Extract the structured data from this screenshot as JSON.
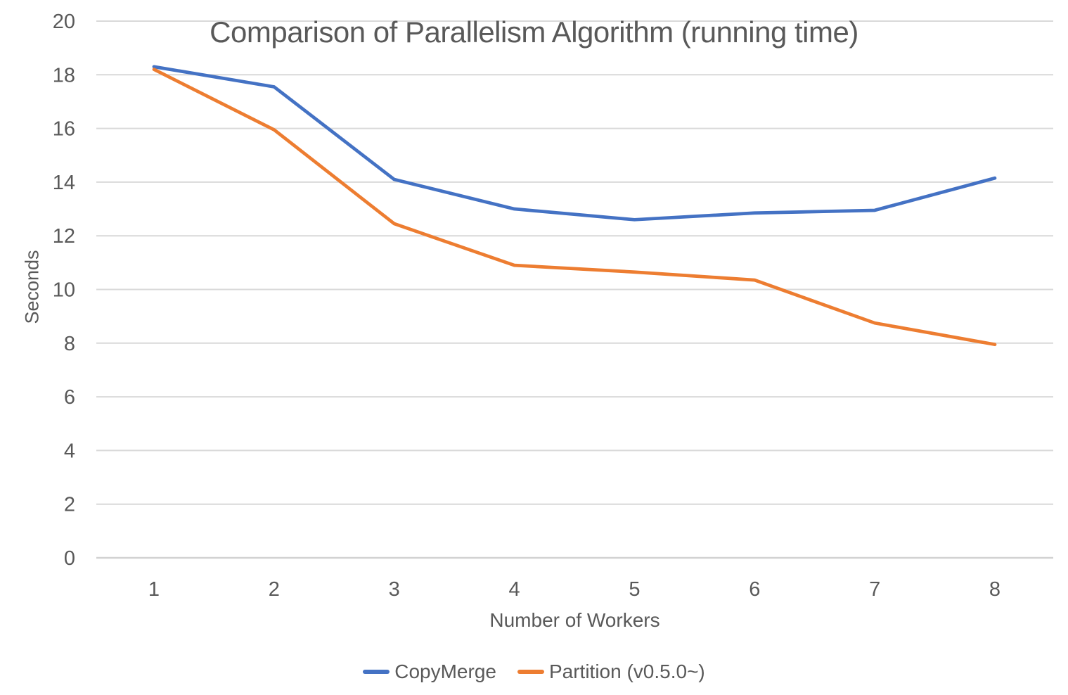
{
  "title": "Comparison of Parallelism Algorithm (running time)",
  "colors": {
    "text": "#595959",
    "gridline": "#D9D9D9",
    "axis_line": "#D2D2D2",
    "background": "#FFFFFF",
    "series_blue": "#4472C4",
    "series_orange": "#ED7D31"
  },
  "chart_data": {
    "type": "line",
    "title": "Comparison of Parallelism Algorithm (running time)",
    "xlabel": "Number of Workers",
    "ylabel": "Seconds",
    "x": [
      1,
      2,
      3,
      4,
      5,
      6,
      7,
      8
    ],
    "xlim": [
      1,
      8
    ],
    "ylim": [
      0,
      20
    ],
    "yticks": [
      0,
      2,
      4,
      6,
      8,
      10,
      12,
      14,
      16,
      18,
      20
    ],
    "grid": true,
    "legend_position": "bottom",
    "series": [
      {
        "name": "CopyMerge",
        "color": "#4472C4",
        "values": [
          18.3,
          17.55,
          14.1,
          13.0,
          12.6,
          12.85,
          12.95,
          14.15
        ]
      },
      {
        "name": "Partition (v0.5.0~)",
        "color": "#ED7D31",
        "values": [
          18.2,
          15.95,
          12.45,
          10.9,
          10.65,
          10.35,
          8.75,
          7.95
        ]
      }
    ]
  }
}
